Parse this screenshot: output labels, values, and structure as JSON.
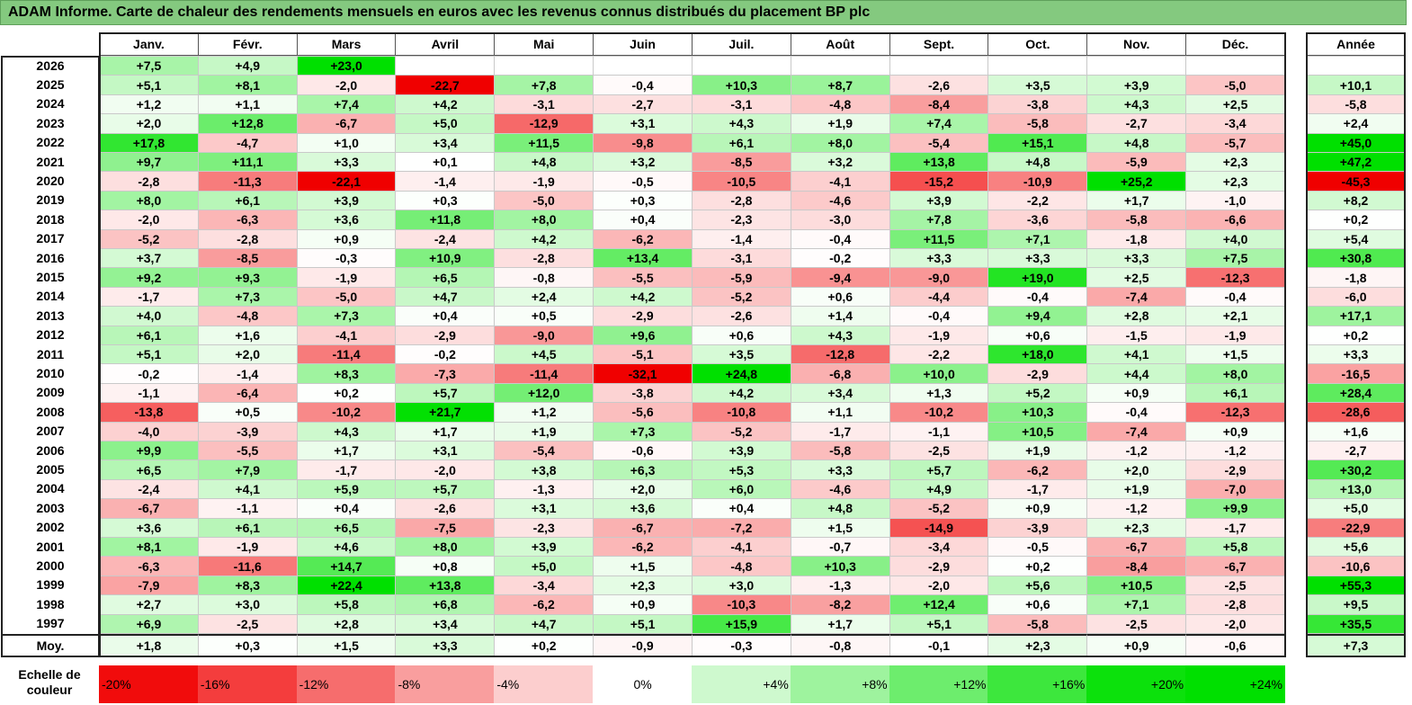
{
  "title": "ADAM Informe. Carte de chaleur des rendements mensuels en euros avec les revenus connus distribués du placement BP plc",
  "chart_data": {
    "type": "heatmap",
    "months": [
      "Janv.",
      "Févr.",
      "Mars",
      "Avril",
      "Mai",
      "Juin",
      "Juil.",
      "Août",
      "Sept.",
      "Oct.",
      "Nov.",
      "Déc."
    ],
    "year_label": "Année",
    "avg_label": "Moy.",
    "rows": [
      {
        "year": "2026",
        "values": [
          "+7,5",
          "+4,9",
          "+23,0",
          "",
          "",
          "",
          "",
          "",
          "",
          "",
          "",
          ""
        ],
        "annual": ""
      },
      {
        "year": "2025",
        "values": [
          "+5,1",
          "+8,1",
          "-2,0",
          "-22,7",
          "+7,8",
          "-0,4",
          "+10,3",
          "+8,7",
          "-2,6",
          "+3,5",
          "+3,9",
          "-5,0"
        ],
        "annual": "+10,1"
      },
      {
        "year": "2024",
        "values": [
          "+1,2",
          "+1,1",
          "+7,4",
          "+4,2",
          "-3,1",
          "-2,7",
          "-3,1",
          "-4,8",
          "-8,4",
          "-3,8",
          "+4,3",
          "+2,5"
        ],
        "annual": "-5,8"
      },
      {
        "year": "2023",
        "values": [
          "+2,0",
          "+12,8",
          "-6,7",
          "+5,0",
          "-12,9",
          "+3,1",
          "+4,3",
          "+1,9",
          "+7,4",
          "-5,8",
          "-2,7",
          "-3,4"
        ],
        "annual": "+2,4"
      },
      {
        "year": "2022",
        "values": [
          "+17,8",
          "-4,7",
          "+1,0",
          "+3,4",
          "+11,5",
          "-9,8",
          "+6,1",
          "+8,0",
          "-5,4",
          "+15,1",
          "+4,8",
          "-5,7"
        ],
        "annual": "+45,0"
      },
      {
        "year": "2021",
        "values": [
          "+9,7",
          "+11,1",
          "+3,3",
          "+0,1",
          "+4,8",
          "+3,2",
          "-8,5",
          "+3,2",
          "+13,8",
          "+4,8",
          "-5,9",
          "+2,3"
        ],
        "annual": "+47,2"
      },
      {
        "year": "2020",
        "values": [
          "-2,8",
          "-11,3",
          "-22,1",
          "-1,4",
          "-1,9",
          "-0,5",
          "-10,5",
          "-4,1",
          "-15,2",
          "-10,9",
          "+25,2",
          "+2,3"
        ],
        "annual": "-45,3"
      },
      {
        "year": "2019",
        "values": [
          "+8,0",
          "+6,1",
          "+3,9",
          "+0,3",
          "-5,0",
          "+0,3",
          "-2,8",
          "-4,6",
          "+3,9",
          "-2,2",
          "+1,7",
          "-1,0"
        ],
        "annual": "+8,2"
      },
      {
        "year": "2018",
        "values": [
          "-2,0",
          "-6,3",
          "+3,6",
          "+11,8",
          "+8,0",
          "+0,4",
          "-2,3",
          "-3,0",
          "+7,8",
          "-3,6",
          "-5,8",
          "-6,6"
        ],
        "annual": "+0,2"
      },
      {
        "year": "2017",
        "values": [
          "-5,2",
          "-2,8",
          "+0,9",
          "-2,4",
          "+4,2",
          "-6,2",
          "-1,4",
          "-0,4",
          "+11,5",
          "+7,1",
          "-1,8",
          "+4,0"
        ],
        "annual": "+5,4"
      },
      {
        "year": "2016",
        "values": [
          "+3,7",
          "-8,5",
          "-0,3",
          "+10,9",
          "-2,8",
          "+13,4",
          "-3,1",
          "-0,2",
          "+3,3",
          "+3,3",
          "+3,3",
          "+7,5"
        ],
        "annual": "+30,8"
      },
      {
        "year": "2015",
        "values": [
          "+9,2",
          "+9,3",
          "-1,9",
          "+6,5",
          "-0,8",
          "-5,5",
          "-5,9",
          "-9,4",
          "-9,0",
          "+19,0",
          "+2,5",
          "-12,3"
        ],
        "annual": "-1,8"
      },
      {
        "year": "2014",
        "values": [
          "-1,7",
          "+7,3",
          "-5,0",
          "+4,7",
          "+2,4",
          "+4,2",
          "-5,2",
          "+0,6",
          "-4,4",
          "-0,4",
          "-7,4",
          "-0,4"
        ],
        "annual": "-6,0"
      },
      {
        "year": "2013",
        "values": [
          "+4,0",
          "-4,8",
          "+7,3",
          "+0,4",
          "+0,5",
          "-2,9",
          "-2,6",
          "+1,4",
          "-0,4",
          "+9,4",
          "+2,8",
          "+2,1"
        ],
        "annual": "+17,1"
      },
      {
        "year": "2012",
        "values": [
          "+6,1",
          "+1,6",
          "-4,1",
          "-2,9",
          "-9,0",
          "+9,6",
          "+0,6",
          "+4,3",
          "-1,9",
          "+0,6",
          "-1,5",
          "-1,9"
        ],
        "annual": "+0,2"
      },
      {
        "year": "2011",
        "values": [
          "+5,1",
          "+2,0",
          "-11,4",
          "-0,2",
          "+4,5",
          "-5,1",
          "+3,5",
          "-12,8",
          "-2,2",
          "+18,0",
          "+4,1",
          "+1,5"
        ],
        "annual": "+3,3"
      },
      {
        "year": "2010",
        "values": [
          "-0,2",
          "-1,4",
          "+8,3",
          "-7,3",
          "-11,4",
          "-32,1",
          "+24,8",
          "-6,8",
          "+10,0",
          "-2,9",
          "+4,4",
          "+8,0"
        ],
        "annual": "-16,5"
      },
      {
        "year": "2009",
        "values": [
          "-1,1",
          "-6,4",
          "+0,2",
          "+5,7",
          "+12,0",
          "-3,8",
          "+4,2",
          "+3,4",
          "+1,3",
          "+5,2",
          "+0,9",
          "+6,1"
        ],
        "annual": "+28,4"
      },
      {
        "year": "2008",
        "values": [
          "-13,8",
          "+0,5",
          "-10,2",
          "+21,7",
          "+1,2",
          "-5,6",
          "-10,8",
          "+1,1",
          "-10,2",
          "+10,3",
          "-0,4",
          "-12,3"
        ],
        "annual": "-28,6"
      },
      {
        "year": "2007",
        "values": [
          "-4,0",
          "-3,9",
          "+4,3",
          "+1,7",
          "+1,9",
          "+7,3",
          "-5,2",
          "-1,7",
          "-1,1",
          "+10,5",
          "-7,4",
          "+0,9"
        ],
        "annual": "+1,6"
      },
      {
        "year": "2006",
        "values": [
          "+9,9",
          "-5,5",
          "+1,7",
          "+3,1",
          "-5,4",
          "-0,6",
          "+3,9",
          "-5,8",
          "-2,5",
          "+1,9",
          "-1,2",
          "-1,2"
        ],
        "annual": "-2,7"
      },
      {
        "year": "2005",
        "values": [
          "+6,5",
          "+7,9",
          "-1,7",
          "-2,0",
          "+3,8",
          "+6,3",
          "+5,3",
          "+3,3",
          "+5,7",
          "-6,2",
          "+2,0",
          "-2,9"
        ],
        "annual": "+30,2"
      },
      {
        "year": "2004",
        "values": [
          "-2,4",
          "+4,1",
          "+5,9",
          "+5,7",
          "-1,3",
          "+2,0",
          "+6,0",
          "-4,6",
          "+4,9",
          "-1,7",
          "+1,9",
          "-7,0"
        ],
        "annual": "+13,0"
      },
      {
        "year": "2003",
        "values": [
          "-6,7",
          "-1,1",
          "+0,4",
          "-2,6",
          "+3,1",
          "+3,6",
          "+0,4",
          "+4,8",
          "-5,2",
          "+0,9",
          "-1,2",
          "+9,9"
        ],
        "annual": "+5,0"
      },
      {
        "year": "2002",
        "values": [
          "+3,6",
          "+6,1",
          "+6,5",
          "-7,5",
          "-2,3",
          "-6,7",
          "-7,2",
          "+1,5",
          "-14,9",
          "-3,9",
          "+2,3",
          "-1,7"
        ],
        "annual": "-22,9"
      },
      {
        "year": "2001",
        "values": [
          "+8,1",
          "-1,9",
          "+4,6",
          "+8,0",
          "+3,9",
          "-6,2",
          "-4,1",
          "-0,7",
          "-3,4",
          "-0,5",
          "-6,7",
          "+5,8"
        ],
        "annual": "+5,6"
      },
      {
        "year": "2000",
        "values": [
          "-6,3",
          "-11,6",
          "+14,7",
          "+0,8",
          "+5,0",
          "+1,5",
          "-4,8",
          "+10,3",
          "-2,9",
          "+0,2",
          "-8,4",
          "-6,7"
        ],
        "annual": "-10,6"
      },
      {
        "year": "1999",
        "values": [
          "-7,9",
          "+8,3",
          "+22,4",
          "+13,8",
          "-3,4",
          "+2,3",
          "+3,0",
          "-1,3",
          "-2,0",
          "+5,6",
          "+10,5",
          "-2,5"
        ],
        "annual": "+55,3"
      },
      {
        "year": "1998",
        "values": [
          "+2,7",
          "+3,0",
          "+5,8",
          "+6,8",
          "-6,2",
          "+0,9",
          "-10,3",
          "-8,2",
          "+12,4",
          "+0,6",
          "+7,1",
          "-2,8"
        ],
        "annual": "+9,5"
      },
      {
        "year": "1997",
        "values": [
          "+6,9",
          "-2,5",
          "+2,8",
          "+3,4",
          "+4,7",
          "+5,1",
          "+15,9",
          "+1,7",
          "+5,1",
          "-5,8",
          "-2,5",
          "-2,0"
        ],
        "annual": "+35,5"
      }
    ],
    "average": {
      "values": [
        "+1,8",
        "+0,3",
        "+1,5",
        "+3,3",
        "+0,2",
        "-0,9",
        "-0,3",
        "-0,8",
        "-0,1",
        "+2,3",
        "+0,9",
        "-0,6"
      ],
      "annual": "+7,3"
    },
    "scale": {
      "label_line1": "Echelle de",
      "label_line2": "couleur",
      "steps": [
        "-20%",
        "-16%",
        "-12%",
        "-8%",
        "-4%",
        "0%",
        "+4%",
        "+8%",
        "+12%",
        "+16%",
        "+20%",
        "+24%"
      ],
      "step_values": [
        -20,
        -16,
        -12,
        -8,
        -4,
        0,
        4,
        8,
        12,
        16,
        20,
        24
      ]
    },
    "colors": {
      "negative_max": "#f00000",
      "neutral": "#ffffff",
      "positive_max": "#00e000",
      "title_bar": "#84c97f"
    }
  }
}
